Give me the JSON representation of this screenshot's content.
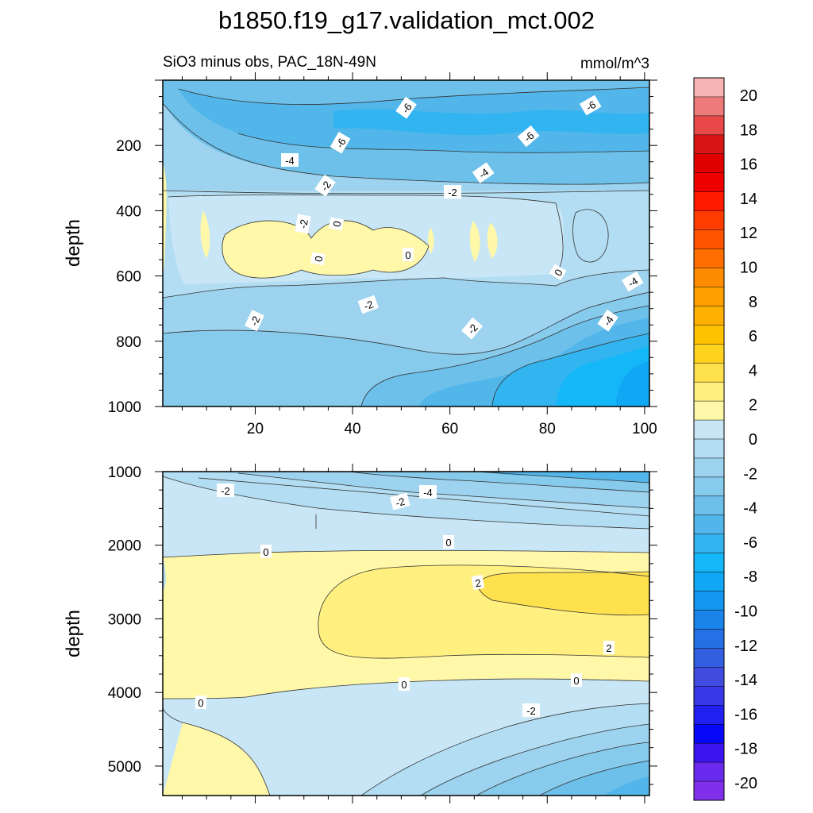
{
  "chart_data": {
    "type": "contour",
    "title": "b1850.f19_g17.validation_mct.002",
    "subtitle_left": "SiO3 minus obs, PAC_18N-49N",
    "subtitle_right": "mmol/m^3",
    "panels": [
      {
        "name": "upper",
        "ylabel": "depth",
        "xlim": [
          1,
          101
        ],
        "ylim": [
          1000,
          0
        ],
        "x_ticks": [
          "20",
          "40",
          "60",
          "80",
          "100"
        ],
        "y_ticks": [
          "200",
          "400",
          "600",
          "800",
          "1000"
        ],
        "contour_labels": [
          "-6",
          "-6",
          "-6",
          "-6",
          "-4",
          "-4",
          "-2",
          "-2",
          "-2",
          "0",
          "0",
          "0",
          "0",
          "-2",
          "-2",
          "-2",
          "-4",
          "-4",
          "-6"
        ]
      },
      {
        "name": "lower",
        "ylabel": "depth",
        "xlim": [
          1,
          101
        ],
        "ylim": [
          5400,
          1000
        ],
        "x_ticks": [],
        "y_ticks": [
          "1000",
          "2000",
          "3000",
          "4000",
          "5000"
        ],
        "contour_labels": [
          "-2",
          "-4",
          "-2",
          "0",
          "0",
          "2",
          "2",
          "0",
          "0",
          "0",
          "-2"
        ]
      }
    ],
    "colorbar": {
      "labels": [
        "20",
        "18",
        "16",
        "14",
        "12",
        "10",
        "8",
        "6",
        "4",
        "2",
        "0",
        "-2",
        "-4",
        "-6",
        "-8",
        "-10",
        "-12",
        "-14",
        "-16",
        "-18",
        "-20"
      ],
      "colors": [
        "#f8b4b4",
        "#ef7a7a",
        "#e84848",
        "#d81616",
        "#e00000",
        "#ee0000",
        "#ff1a00",
        "#ff3c00",
        "#ff5500",
        "#ff6e00",
        "#ff8c00",
        "#ffa000",
        "#ffb000",
        "#ffc200",
        "#ffd21e",
        "#ffe14e",
        "#fff080",
        "#fff8a8",
        "#c8e6f5",
        "#b2ddf2",
        "#9dd3ef",
        "#86caec",
        "#6cc0ea",
        "#52b6ea",
        "#32b4f0",
        "#14b8f8",
        "#10a8f4",
        "#1296f0",
        "#1a84ea",
        "#2470e4",
        "#325ee0",
        "#404ce0",
        "#3838e8",
        "#2020f0",
        "#0808f8",
        "#3c14f0",
        "#6a2aee",
        "#8030ea"
      ]
    }
  }
}
